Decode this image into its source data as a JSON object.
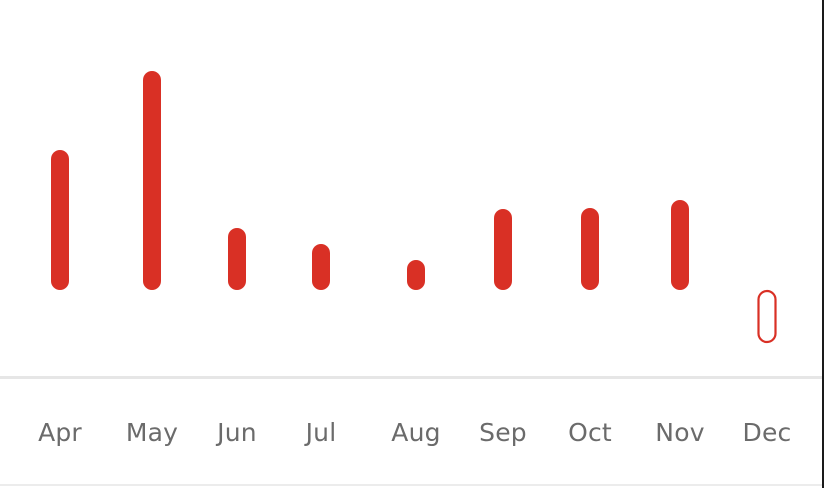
{
  "chart_data": {
    "type": "bar",
    "categories": [
      "Apr",
      "May",
      "Jun",
      "Jul",
      "Aug",
      "Sep",
      "Oct",
      "Nov",
      "Dec"
    ],
    "values": [
      140,
      219,
      62,
      46,
      30,
      81,
      82,
      90,
      0
    ],
    "title": "",
    "xlabel": "",
    "ylabel": "",
    "grid": false,
    "legend": "none",
    "colors": {
      "bar": "#d93025",
      "empty_bar_outline": "#d93025",
      "label": "#6b6b6b",
      "divider": "#e6e6e6"
    },
    "selected_category": "Dec"
  }
}
